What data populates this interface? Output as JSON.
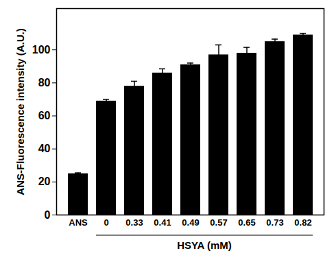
{
  "chart_data": {
    "type": "bar",
    "categories": [
      "ANS",
      "0",
      "0.33",
      "0.41",
      "0.49",
      "0.57",
      "0.65",
      "0.73",
      "0.82"
    ],
    "values": [
      25,
      69,
      78,
      86,
      91,
      97,
      98,
      105,
      109
    ],
    "errors": [
      0.5,
      1,
      3,
      2.5,
      1,
      6,
      3.5,
      1.5,
      1
    ],
    "color": "#000000",
    "y_label": "ANS-Fluorescence intensity (A.U.)",
    "x_label": "HSYA (mM)",
    "ylim": [
      0,
      125
    ],
    "yticks": [
      0,
      20,
      40,
      60,
      80,
      100
    ]
  }
}
